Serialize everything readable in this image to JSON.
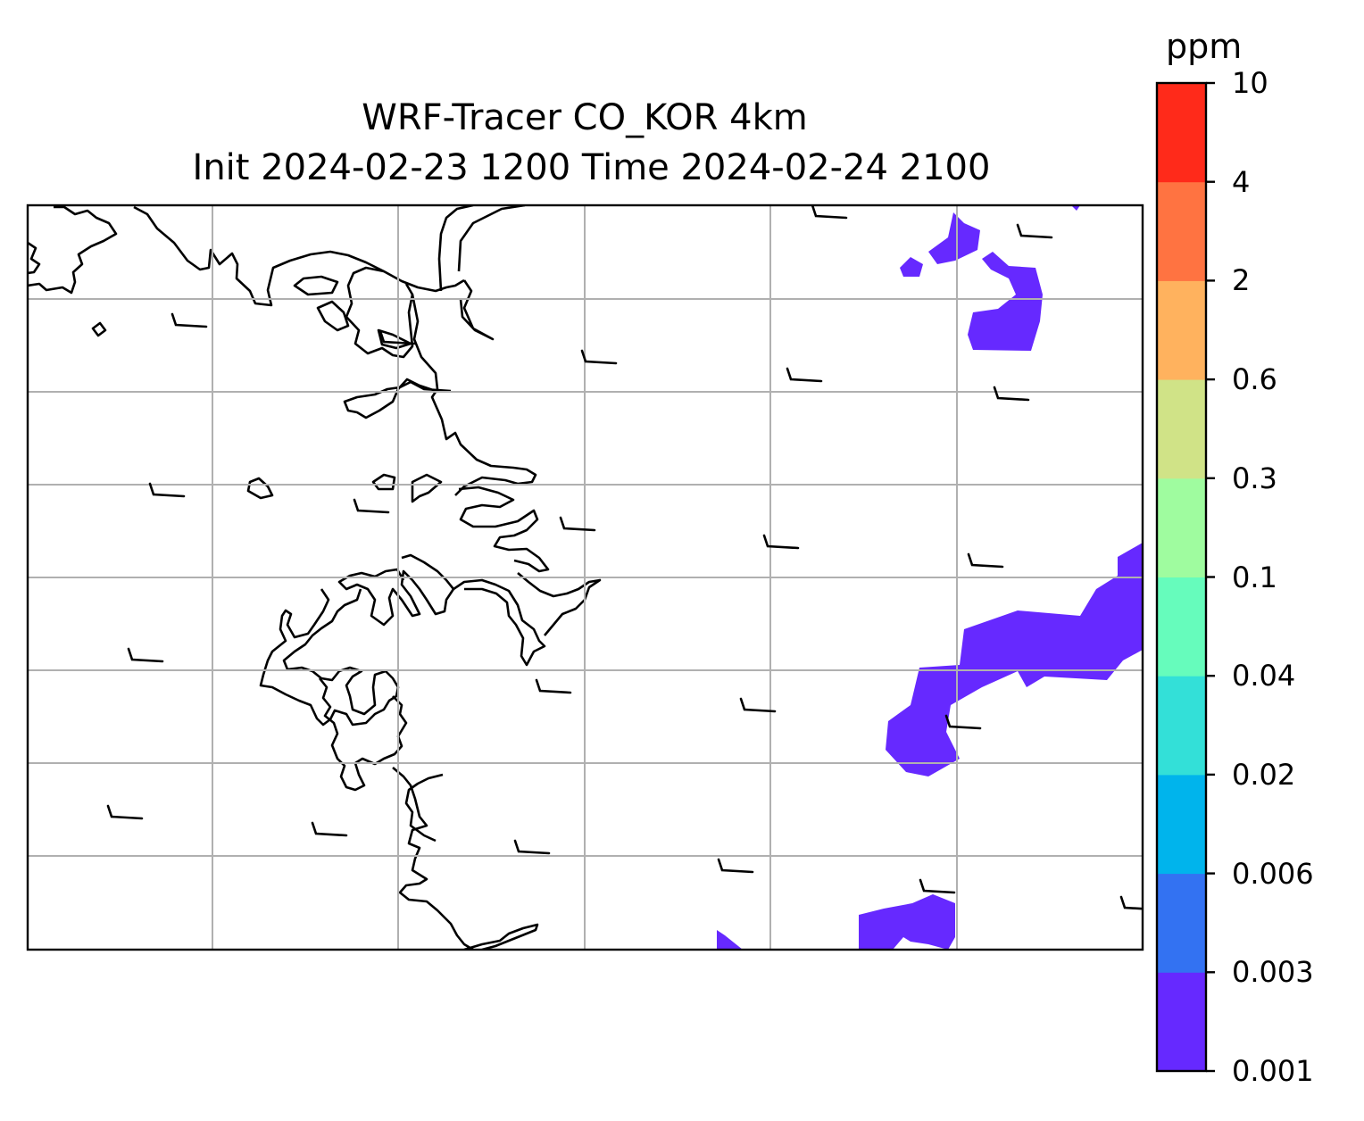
{
  "title": {
    "line1": "WRF-Tracer CO_KOR 4km",
    "line2": "Init 2024-02-23 1200 Time 2024-02-24 2100"
  },
  "colorbar": {
    "units": "ppm",
    "tick_labels": [
      "0.001",
      "0.003",
      "0.006",
      "0.02",
      "0.04",
      "0.1",
      "0.3",
      "0.6",
      "2",
      "4",
      "10"
    ],
    "colors": [
      "#6629ff",
      "#3372f2",
      "#00b4ec",
      "#33e0d8",
      "#66fcbc",
      "#9ffc9f",
      "#d0e387",
      "#ffb25e",
      "#ff7341",
      "#ff2a1a"
    ]
  },
  "map": {
    "tracer_fill_color": "#6629ff",
    "gridlines": true
  }
}
